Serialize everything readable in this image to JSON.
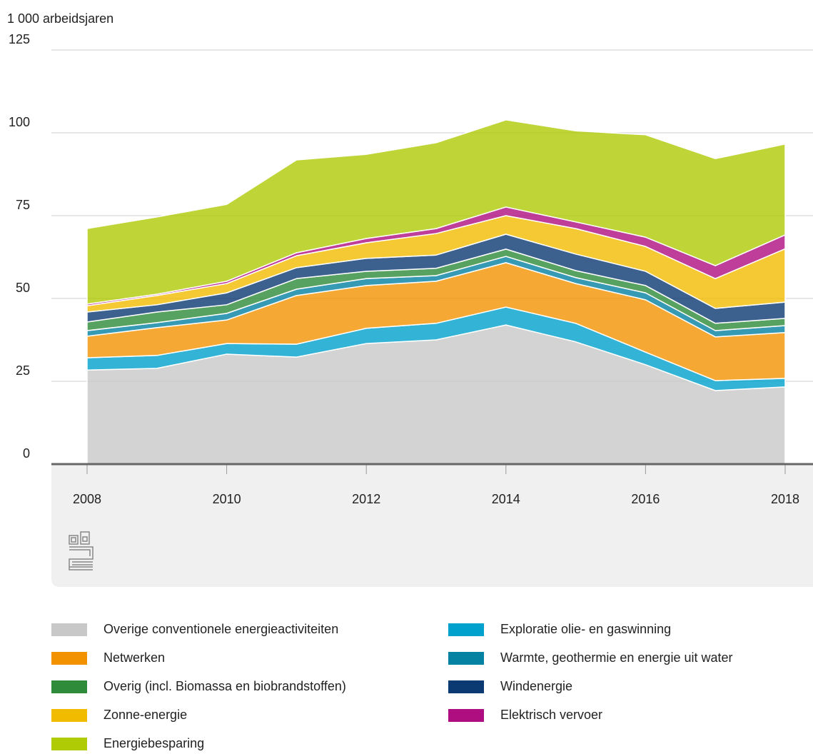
{
  "chart_data": {
    "type": "stacked-area",
    "y_axis_label": "1 000 arbeidsjaren",
    "x": [
      2008,
      2009,
      2010,
      2011,
      2012,
      2013,
      2014,
      2015,
      2016,
      2017,
      2018
    ],
    "xlim": [
      2008,
      2018
    ],
    "xticks": [
      2008,
      2010,
      2012,
      2014,
      2016,
      2018
    ],
    "ylim": [
      0,
      125
    ],
    "yticks": [
      0,
      25,
      50,
      75,
      100,
      125
    ],
    "grid": true,
    "series": [
      {
        "name": "Overige conventionele energieactiviteiten",
        "color": "#c8c8c8",
        "values": [
          28.4,
          28.9,
          33.2,
          32.3,
          36.4,
          37.5,
          42.0,
          36.9,
          30.0,
          22.2,
          23.3
        ]
      },
      {
        "name": "Exploratie olie- en gaswinning",
        "color": "#00a1cd",
        "values": [
          3.7,
          3.9,
          3.2,
          3.9,
          4.6,
          5.0,
          5.4,
          5.6,
          3.8,
          3.0,
          2.6
        ]
      },
      {
        "name": "Netwerken",
        "color": "#f39200",
        "values": [
          6.5,
          8.4,
          7.1,
          14.7,
          12.9,
          12.7,
          13.4,
          12.0,
          15.8,
          13.2,
          13.8
        ]
      },
      {
        "name": "Warmte, geothermie en energie uit water",
        "color": "#0581a2",
        "values": [
          1.7,
          1.5,
          2.0,
          1.9,
          2.1,
          1.7,
          1.9,
          1.8,
          2.1,
          1.9,
          2.1
        ]
      },
      {
        "name": "Overig (incl. Biomassa en biobrandstoffen)",
        "color": "#2e8b3a",
        "values": [
          2.6,
          3.2,
          2.6,
          3.2,
          2.2,
          2.2,
          2.2,
          2.1,
          2.2,
          2.2,
          2.2
        ]
      },
      {
        "name": "Windenergie",
        "color": "#0b3a72",
        "values": [
          3.0,
          2.2,
          3.6,
          3.3,
          3.9,
          4.0,
          4.5,
          5.0,
          4.3,
          4.5,
          4.9
        ]
      },
      {
        "name": "Zonne-energie",
        "color": "#f1bb00",
        "values": [
          1.9,
          2.8,
          2.8,
          3.6,
          4.7,
          6.5,
          5.6,
          7.7,
          7.5,
          9.0,
          16.1
        ]
      },
      {
        "name": "Elektrisch vervoer",
        "color": "#af0e80",
        "values": [
          0.5,
          0.4,
          0.7,
          0.9,
          1.3,
          1.5,
          2.6,
          2.0,
          2.8,
          3.9,
          4.2
        ]
      },
      {
        "name": "Energiebesparing",
        "color": "#afcb05",
        "values": [
          22.8,
          23.3,
          23.2,
          28.0,
          25.4,
          25.9,
          26.3,
          27.5,
          30.9,
          32.3,
          27.4
        ]
      }
    ]
  }
}
